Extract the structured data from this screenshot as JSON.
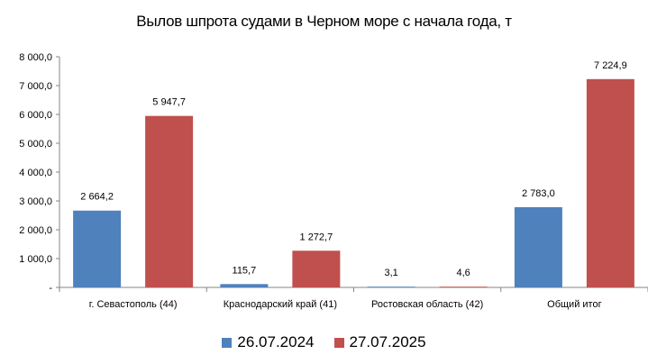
{
  "chart_data": {
    "type": "bar",
    "title": "Вылов шпрота судами в Черном море с начала  года, т",
    "categories": [
      "г. Севастополь (44)",
      "Краснодарский край (41)",
      "Ростовская область (42)",
      "Общий итог"
    ],
    "series": [
      {
        "name": "26.07.2024",
        "color": "#4F81BD",
        "values": [
          2664.2,
          115.7,
          3.1,
          2783.0
        ],
        "labels": [
          "2 664,2",
          "115,7",
          "3,1",
          "2 783,0"
        ]
      },
      {
        "name": "27.07.2025",
        "color": "#C0504D",
        "values": [
          5947.7,
          1272.7,
          4.6,
          7224.9
        ],
        "labels": [
          "5 947,7",
          "1 272,7",
          "4,6",
          "7 224,9"
        ]
      }
    ],
    "ylim": [
      0,
      8000
    ],
    "yticks": [
      0,
      1000,
      2000,
      3000,
      4000,
      5000,
      6000,
      7000,
      8000
    ],
    "ytick_labels": [
      "-",
      "1 000,0",
      "2 000,0",
      "3 000,0",
      "4 000,0",
      "5 000,0",
      "6 000,0",
      "7 000,0",
      "8 000,0"
    ],
    "grid": false,
    "legend_position": "bottom"
  }
}
